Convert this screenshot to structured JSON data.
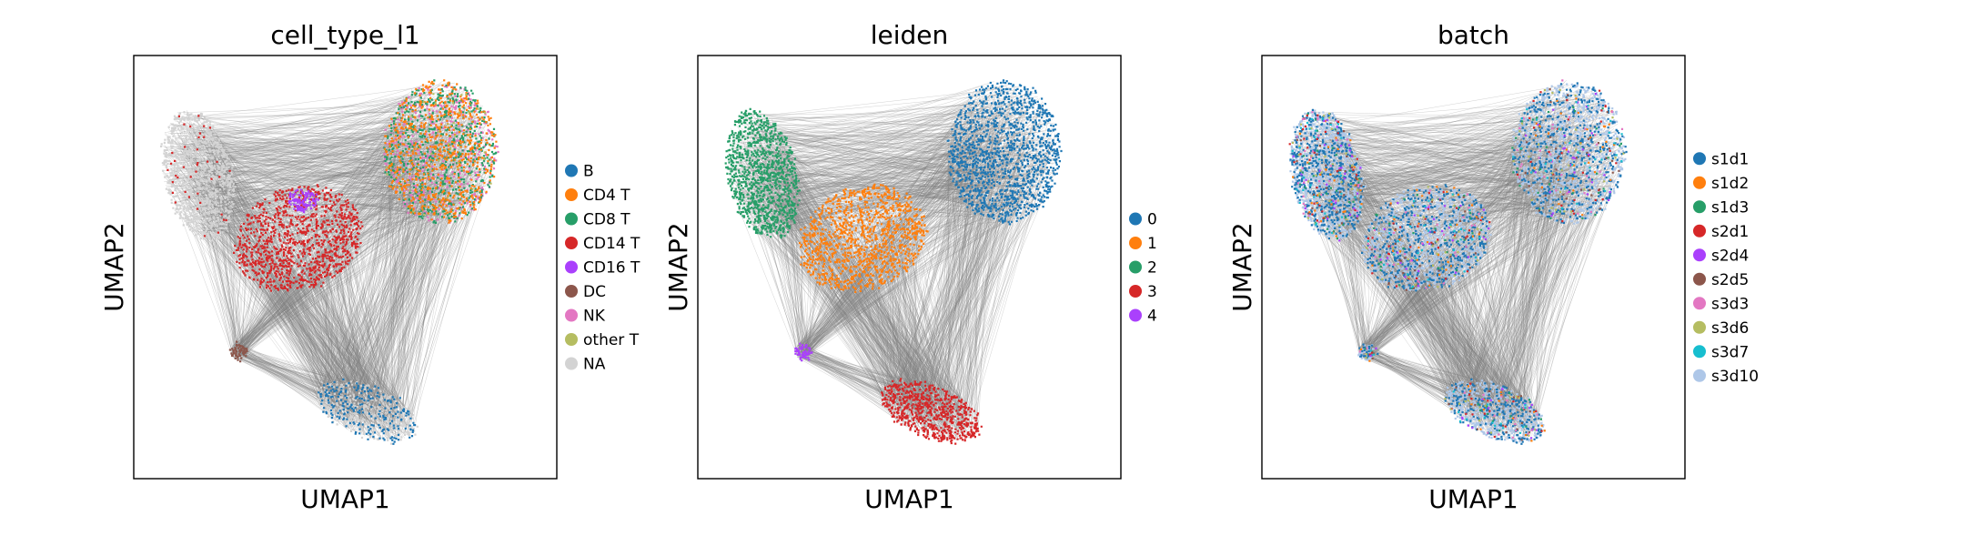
{
  "chart_data": [
    {
      "type": "scatter",
      "title": "cell_type_l1",
      "xlabel": "UMAP1",
      "ylabel": "UMAP2",
      "grid": false,
      "legend_position": "right",
      "edges_color": "#7f7f7f",
      "series": [
        {
          "name": "B",
          "color": "#1f77b4"
        },
        {
          "name": "CD4 T",
          "color": "#ff7f0e"
        },
        {
          "name": "CD8 T",
          "color": "#279e68"
        },
        {
          "name": "CD14 T",
          "color": "#d62728"
        },
        {
          "name": "CD16 T",
          "color": "#aa40fc"
        },
        {
          "name": "DC",
          "color": "#8c564b"
        },
        {
          "name": "NK",
          "color": "#e377c2"
        },
        {
          "name": "other T",
          "color": "#b5bd61"
        },
        {
          "name": "NA",
          "color": "#d3d3d3"
        }
      ]
    },
    {
      "type": "scatter",
      "title": "leiden",
      "xlabel": "UMAP1",
      "ylabel": "UMAP2",
      "grid": false,
      "legend_position": "right",
      "edges_color": "#7f7f7f",
      "series": [
        {
          "name": "0",
          "color": "#1f77b4"
        },
        {
          "name": "1",
          "color": "#ff7f0e"
        },
        {
          "name": "2",
          "color": "#279e68"
        },
        {
          "name": "3",
          "color": "#d62728"
        },
        {
          "name": "4",
          "color": "#aa40fc"
        }
      ]
    },
    {
      "type": "scatter",
      "title": "batch",
      "xlabel": "UMAP1",
      "ylabel": "UMAP2",
      "grid": false,
      "legend_position": "right",
      "edges_color": "#7f7f7f",
      "series": [
        {
          "name": "s1d1",
          "color": "#1f77b4"
        },
        {
          "name": "s1d2",
          "color": "#ff7f0e"
        },
        {
          "name": "s1d3",
          "color": "#279e68"
        },
        {
          "name": "s2d1",
          "color": "#d62728"
        },
        {
          "name": "s2d4",
          "color": "#aa40fc"
        },
        {
          "name": "s2d5",
          "color": "#8c564b"
        },
        {
          "name": "s3d3",
          "color": "#e377c2"
        },
        {
          "name": "s3d6",
          "color": "#b5bd61"
        },
        {
          "name": "s3d7",
          "color": "#17becf"
        },
        {
          "name": "s3d10",
          "color": "#aec7e8"
        }
      ]
    }
  ]
}
